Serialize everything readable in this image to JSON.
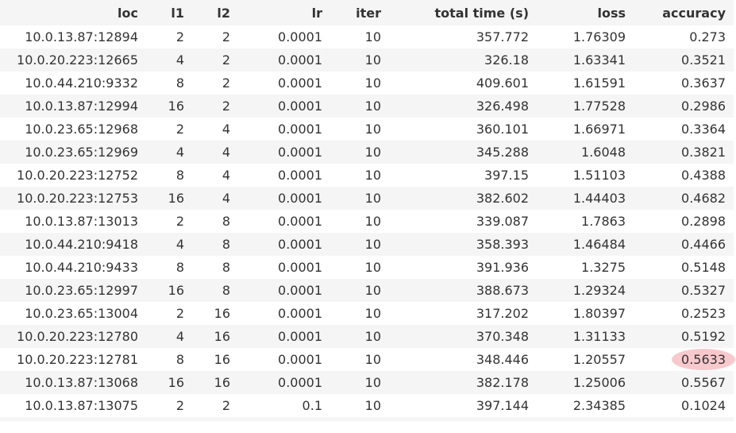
{
  "table": {
    "headers": [
      "loc",
      "l1",
      "l2",
      "lr",
      "iter",
      "total time (s)",
      "loss",
      "accuracy"
    ],
    "rows": [
      [
        "10.0.13.87:12894",
        "2",
        "2",
        "0.0001",
        "10",
        "357.772",
        "1.76309",
        "0.273"
      ],
      [
        "10.0.20.223:12665",
        "4",
        "2",
        "0.0001",
        "10",
        "326.18",
        "1.63341",
        "0.3521"
      ],
      [
        "10.0.44.210:9332",
        "8",
        "2",
        "0.0001",
        "10",
        "409.601",
        "1.61591",
        "0.3637"
      ],
      [
        "10.0.13.87:12994",
        "16",
        "2",
        "0.0001",
        "10",
        "326.498",
        "1.77528",
        "0.2986"
      ],
      [
        "10.0.23.65:12968",
        "2",
        "4",
        "0.0001",
        "10",
        "360.101",
        "1.66971",
        "0.3364"
      ],
      [
        "10.0.23.65:12969",
        "4",
        "4",
        "0.0001",
        "10",
        "345.288",
        "1.6048",
        "0.3821"
      ],
      [
        "10.0.20.223:12752",
        "8",
        "4",
        "0.0001",
        "10",
        "397.15",
        "1.51103",
        "0.4388"
      ],
      [
        "10.0.20.223:12753",
        "16",
        "4",
        "0.0001",
        "10",
        "382.602",
        "1.44403",
        "0.4682"
      ],
      [
        "10.0.13.87:13013",
        "2",
        "8",
        "0.0001",
        "10",
        "339.087",
        "1.7863",
        "0.2898"
      ],
      [
        "10.0.44.210:9418",
        "4",
        "8",
        "0.0001",
        "10",
        "358.393",
        "1.46484",
        "0.4466"
      ],
      [
        "10.0.44.210:9433",
        "8",
        "8",
        "0.0001",
        "10",
        "391.936",
        "1.3275",
        "0.5148"
      ],
      [
        "10.0.23.65:12997",
        "16",
        "8",
        "0.0001",
        "10",
        "388.673",
        "1.29324",
        "0.5327"
      ],
      [
        "10.0.23.65:13004",
        "2",
        "16",
        "0.0001",
        "10",
        "317.202",
        "1.80397",
        "0.2523"
      ],
      [
        "10.0.20.223:12780",
        "4",
        "16",
        "0.0001",
        "10",
        "370.348",
        "1.31133",
        "0.5192"
      ],
      [
        "10.0.20.223:12781",
        "8",
        "16",
        "0.0001",
        "10",
        "348.446",
        "1.20557",
        "0.5633"
      ],
      [
        "10.0.13.87:13068",
        "16",
        "16",
        "0.0001",
        "10",
        "382.178",
        "1.25006",
        "0.5567"
      ],
      [
        "10.0.13.87:13075",
        "2",
        "2",
        "0.1",
        "10",
        "397.144",
        "2.34385",
        "0.1024"
      ]
    ],
    "highlight": {
      "row": 14,
      "col": 7,
      "color": "#f7c9cc"
    }
  }
}
